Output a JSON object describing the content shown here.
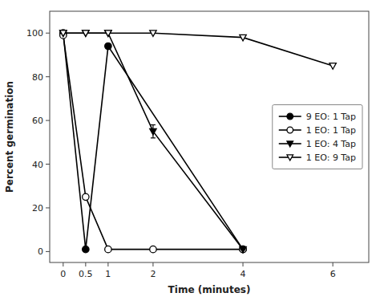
{
  "chart_data": {
    "type": "line",
    "xlabel": "Time (minutes)",
    "ylabel": "Percent germination",
    "xlim": [
      -0.3,
      6.8
    ],
    "ylim": [
      -5,
      110
    ],
    "xticks": [
      0,
      0.5,
      1,
      2,
      4,
      6
    ],
    "yticks": [
      0,
      20,
      40,
      60,
      80,
      100
    ],
    "grid": false,
    "legend": "center right",
    "series": [
      {
        "name": "9 EO: 1 Tap",
        "color": "black",
        "marker": "circle",
        "x": [
          0,
          0.5,
          1.0,
          4.0
        ],
        "values": [
          100,
          1,
          94,
          1
        ]
      },
      {
        "name": "1 EO: 1 Tap",
        "color": "black",
        "marker": "circle-open",
        "x": [
          0,
          0.5,
          1.0,
          2.0,
          4.0
        ],
        "values": [
          99,
          25,
          1,
          1,
          1
        ]
      },
      {
        "name": "1 EO: 4 Tap",
        "color": "black",
        "marker": "triangle-down",
        "x": [
          0,
          0.5,
          1.0,
          2.0,
          4.0
        ],
        "values": [
          100,
          100,
          100,
          55,
          1
        ],
        "errors": [
          0,
          0,
          0,
          3,
          0
        ]
      },
      {
        "name": "1 EO: 9 Tap",
        "color": "black",
        "marker": "triangle-down-open",
        "x": [
          0,
          0.5,
          1.0,
          2.0,
          4.0,
          6.0
        ],
        "values": [
          100,
          100,
          100,
          100,
          98,
          85
        ]
      }
    ]
  }
}
